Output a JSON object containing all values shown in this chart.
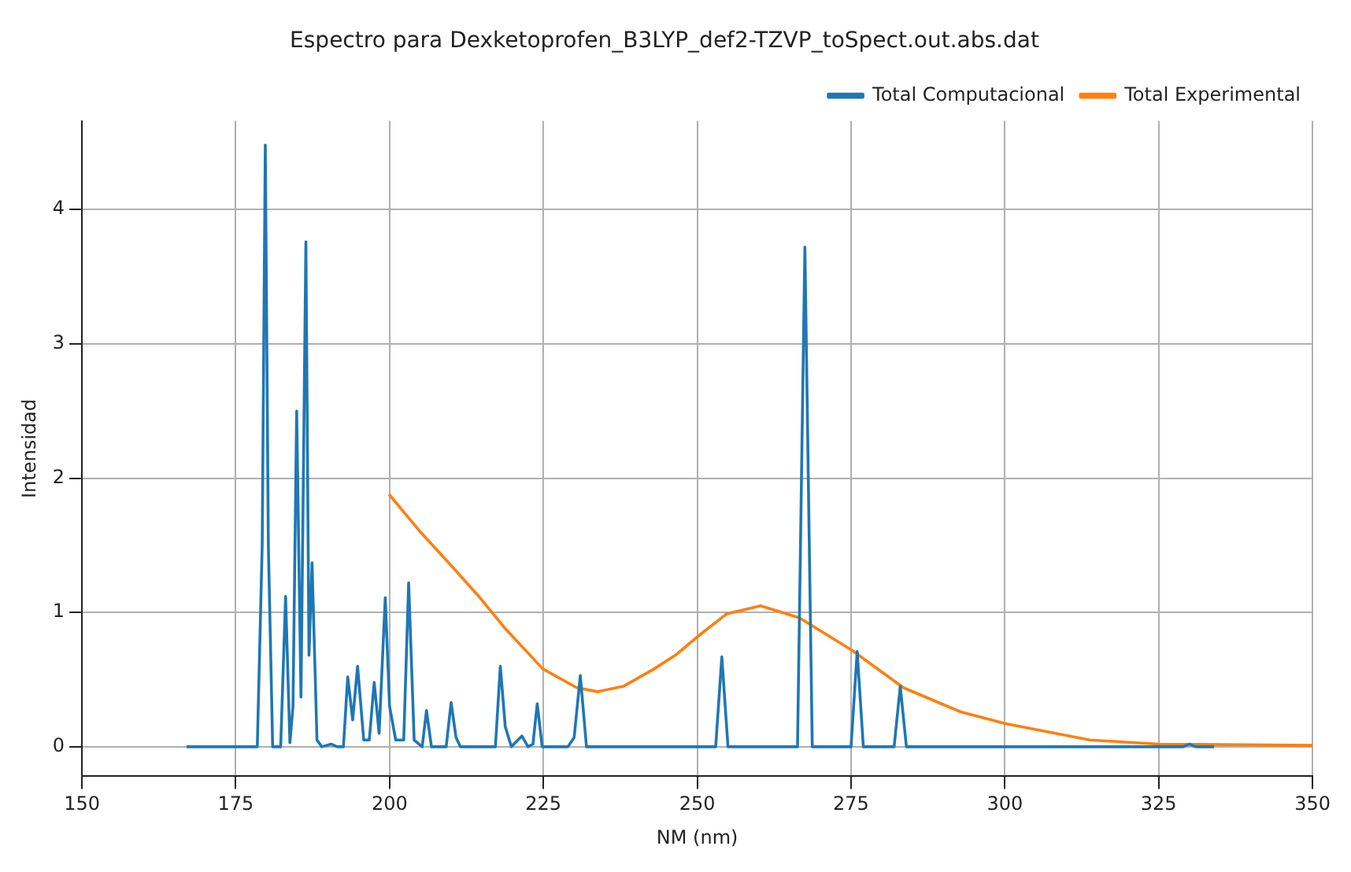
{
  "chart_data": {
    "type": "line",
    "title": "Espectro para Dexketoprofen_B3LYP_def2-TZVP_toSpect.out.abs.dat",
    "xlabel": "NM (nm)",
    "ylabel": "Intensidad",
    "xlim": [
      150,
      350
    ],
    "xticks": [
      150,
      175,
      200,
      225,
      250,
      275,
      300,
      325,
      350
    ],
    "ylim": [
      -0.22,
      4.66
    ],
    "yticks": [
      0,
      1,
      2,
      3,
      4
    ],
    "grid": true,
    "legend": "top right",
    "line_style": "solid",
    "series": [
      {
        "name": "Total Computacional",
        "color": "#1f77b4",
        "x": [
          167,
          178.5,
          179.3,
          179.8,
          180.3,
          181,
          182.3,
          183.1,
          183.8,
          184.3,
          184.9,
          185.6,
          186.4,
          186.9,
          187.4,
          188.2,
          189,
          190.5,
          191.5,
          192.5,
          193.2,
          194,
          194.8,
          195.8,
          196.7,
          197.5,
          198.3,
          199.3,
          200,
          201,
          202.3,
          203.1,
          204,
          205.3,
          206,
          206.8,
          209.2,
          210,
          210.8,
          211.5,
          217.2,
          218,
          218.8,
          219.8,
          221.5,
          222.5,
          223.3,
          224,
          224.8,
          229,
          230,
          231,
          232,
          253,
          254,
          255,
          266.3,
          267.5,
          268.7,
          275,
          276,
          277,
          282,
          283,
          284,
          329,
          330,
          331,
          334
        ],
        "values": [
          0,
          0,
          1.5,
          4.48,
          1.5,
          0,
          0,
          1.12,
          0.03,
          0.3,
          2.5,
          0.37,
          3.76,
          0.68,
          1.37,
          0.05,
          0,
          0.02,
          0,
          0,
          0.52,
          0.2,
          0.6,
          0.05,
          0.05,
          0.48,
          0.1,
          1.11,
          0.3,
          0.05,
          0.05,
          1.22,
          0.05,
          0,
          0.27,
          0,
          0,
          0.33,
          0.07,
          0,
          0,
          0.6,
          0.15,
          0,
          0.08,
          0,
          0.02,
          0.32,
          0,
          0,
          0.07,
          0.53,
          0,
          0,
          0.67,
          0,
          0,
          3.72,
          0,
          0,
          0.71,
          0,
          0,
          0.45,
          0,
          0,
          0.02,
          0,
          0
        ]
      },
      {
        "name": "Total Experimental",
        "color": "#ff7f0e",
        "x": [
          199.9,
          205,
          210.2,
          214.5,
          218.6,
          224.9,
          230.4,
          233.8,
          238,
          243,
          246.4,
          250.6,
          254.8,
          260.3,
          266.6,
          275.1,
          283.5,
          292.8,
          300.3,
          313.8,
          325,
          350
        ],
        "values": [
          1.88,
          1.6,
          1.34,
          1.12,
          0.89,
          0.58,
          0.44,
          0.41,
          0.45,
          0.58,
          0.68,
          0.84,
          0.99,
          1.05,
          0.96,
          0.72,
          0.44,
          0.26,
          0.17,
          0.05,
          0.02,
          0.01
        ]
      }
    ]
  }
}
